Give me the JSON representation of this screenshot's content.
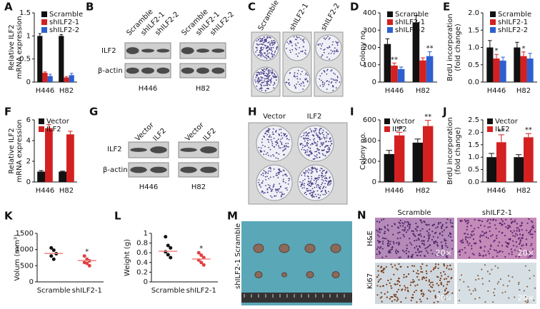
{
  "chart_data": [
    {
      "type": "bar",
      "panel": "A",
      "ylabel": [
        "Relative ILF2",
        "mRNA expression"
      ],
      "categories": [
        "H446",
        "H82"
      ],
      "series": [
        {
          "name": "Scramble",
          "color": "#111111",
          "values": [
            1.0,
            1.0
          ],
          "errors": [
            0.05,
            0.03
          ]
        },
        {
          "name": "shILF2-1",
          "color": "#d42020",
          "values": [
            0.2,
            0.1
          ],
          "errors": [
            0.02,
            0.02
          ]
        },
        {
          "name": "shILF2-2",
          "color": "#2e5fd0",
          "values": [
            0.13,
            0.15
          ],
          "errors": [
            0.04,
            0.04
          ]
        }
      ],
      "ylim": [
        0,
        1.5
      ],
      "yticks": [
        0,
        0.5,
        1,
        1.5
      ],
      "legend": "upper right"
    },
    {
      "type": "bar",
      "panel": "D",
      "ylabel": [
        "Colony no."
      ],
      "categories": [
        "H446",
        "H82"
      ],
      "series": [
        {
          "name": "Scramble",
          "color": "#111111",
          "values": [
            220,
            345
          ],
          "errors": [
            30,
            40
          ]
        },
        {
          "name": "shILF2-1",
          "color": "#d42020",
          "values": [
            95,
            125
          ],
          "errors": [
            15,
            15
          ]
        },
        {
          "name": "shILF2-2",
          "color": "#2e5fd0",
          "values": [
            75,
            150
          ],
          "errors": [
            12,
            25
          ]
        }
      ],
      "ylim": [
        0,
        400
      ],
      "yticks": [
        0,
        100,
        200,
        300,
        400
      ],
      "legend": "upper right",
      "significance": [
        {
          "series": 1,
          "category": 0,
          "text": "**"
        },
        {
          "series": 2,
          "category": 1,
          "text": "**"
        }
      ]
    },
    {
      "type": "bar",
      "panel": "E",
      "ylabel": [
        "BrdU incorporation",
        "(fold change)"
      ],
      "categories": [
        "H446",
        "H82"
      ],
      "series": [
        {
          "name": "Scramble",
          "color": "#111111",
          "values": [
            1.0,
            1.0
          ],
          "errors": [
            0.2,
            0.15
          ]
        },
        {
          "name": "shILF2-1",
          "color": "#d42020",
          "values": [
            0.68,
            0.75
          ],
          "errors": [
            0.12,
            0.12
          ]
        },
        {
          "name": "shILF2-2",
          "color": "#2e5fd0",
          "values": [
            0.62,
            0.68
          ],
          "errors": [
            0.1,
            0.15
          ]
        }
      ],
      "ylim": [
        0,
        2.0
      ],
      "yticks": [
        {
          "value": 0,
          "label": "0.0"
        },
        {
          "value": 0.5,
          "label": "0.5"
        },
        {
          "value": 1.0,
          "label": "1.0"
        },
        {
          "value": 1.5,
          "label": "1.5"
        },
        {
          "value": 2.0,
          "label": "2.0"
        }
      ],
      "legend": "upper right",
      "significance": [
        {
          "series": 1,
          "category": 0,
          "text": "*"
        },
        {
          "series": 1,
          "category": 1,
          "text": "*"
        }
      ]
    },
    {
      "type": "bar",
      "panel": "F",
      "ylabel": [
        "Relative ILF2",
        "mRNA expression"
      ],
      "categories": [
        "H446",
        "H82"
      ],
      "series": [
        {
          "name": "Vector",
          "color": "#111111",
          "values": [
            1.0,
            1.0
          ],
          "errors": [
            0.1,
            0.05
          ]
        },
        {
          "name": "ILF2",
          "color": "#d42020",
          "values": [
            5.2,
            4.6
          ],
          "errors": [
            0.35,
            0.3
          ]
        }
      ],
      "ylim": [
        0,
        6
      ],
      "yticks": [
        0,
        2,
        4,
        6
      ],
      "legend": "upper left"
    },
    {
      "type": "bar",
      "panel": "I",
      "ylabel": [
        "Colony no."
      ],
      "categories": [
        "H446",
        "H82"
      ],
      "series": [
        {
          "name": "Vector",
          "color": "#111111",
          "values": [
            270,
            380
          ],
          "errors": [
            35,
            35
          ]
        },
        {
          "name": "ILF2",
          "color": "#d42020",
          "values": [
            450,
            540
          ],
          "errors": [
            30,
            55
          ]
        }
      ],
      "ylim": [
        0,
        600
      ],
      "yticks": [
        0,
        200,
        400,
        600
      ],
      "legend": "upper left",
      "significance": [
        {
          "series": 1,
          "category": 0,
          "text": "**"
        },
        {
          "series": 1,
          "category": 1,
          "text": "**"
        }
      ]
    },
    {
      "type": "bar",
      "panel": "J",
      "ylabel": [
        "BrdU incorporation",
        "(fold change)"
      ],
      "categories": [
        "H446",
        "H82"
      ],
      "series": [
        {
          "name": "Vector",
          "color": "#111111",
          "values": [
            1.0,
            1.0
          ],
          "errors": [
            0.15,
            0.1
          ]
        },
        {
          "name": "ILF2",
          "color": "#d42020",
          "values": [
            1.6,
            1.8
          ],
          "errors": [
            0.3,
            0.15
          ]
        }
      ],
      "ylim": [
        0,
        2.5
      ],
      "yticks": [
        {
          "value": 0,
          "label": "0.0"
        },
        {
          "value": 0.5,
          "label": "0.5"
        },
        {
          "value": 1.0,
          "label": "1.0"
        },
        {
          "value": 1.5,
          "label": "1.5"
        },
        {
          "value": 2.0,
          "label": "2.0"
        },
        {
          "value": 2.5,
          "label": "2.5"
        }
      ],
      "legend": "upper left",
      "significance": [
        {
          "series": 1,
          "category": 0,
          "text": "**"
        },
        {
          "series": 1,
          "category": 1,
          "text": "**"
        }
      ]
    },
    {
      "type": "strip",
      "panel": "K",
      "ylabel": [
        "Volum (mm³)"
      ],
      "mean_color": "#f08080",
      "groups": [
        {
          "name": "Scramble",
          "color": "#111111",
          "values": [
            1050,
            980,
            870,
            800,
            700
          ],
          "mean": 880
        },
        {
          "name": "shILF2-1",
          "color": "#e04040",
          "values": [
            800,
            700,
            650,
            600,
            570,
            500
          ],
          "mean": 660
        }
      ],
      "ylim": [
        0,
        1500
      ],
      "yticks": [
        0,
        500,
        1000,
        1500
      ],
      "significance": [
        {
          "group": 1,
          "text": "*"
        }
      ]
    },
    {
      "type": "strip",
      "panel": "L",
      "ylabel": [
        "Weight (g)"
      ],
      "mean_color": "#f08080",
      "groups": [
        {
          "name": "Scramble",
          "color": "#111111",
          "values": [
            0.93,
            0.75,
            0.7,
            0.62,
            0.56,
            0.5
          ],
          "mean": 0.63
        },
        {
          "name": "shILF2-1",
          "color": "#e04040",
          "values": [
            0.6,
            0.55,
            0.5,
            0.45,
            0.4,
            0.35
          ],
          "mean": 0.47
        }
      ],
      "ylim": [
        0,
        1.0
      ],
      "yticks": [
        0,
        0.2,
        0.4,
        0.6,
        0.8,
        1
      ],
      "significance": [
        {
          "group": 1,
          "text": "*"
        }
      ]
    }
  ],
  "panels": {
    "B": {
      "label": "B",
      "columns": [
        "Scramble",
        "shILF2-1",
        "shILF2-2",
        "Scramble",
        "shILF2-1",
        "shILF2-2"
      ],
      "rows": [
        "ILF2",
        "β-actin"
      ],
      "cell_lines": [
        "H446",
        "H82"
      ]
    },
    "C": {
      "label": "C",
      "columns": [
        "Scramble",
        "shILF2-1",
        "shILF2-2"
      ]
    },
    "G": {
      "label": "G",
      "columns": [
        "Vector",
        "ILF2",
        "Vector",
        "ILF2"
      ],
      "rows": [
        "ILF2",
        "β-actin"
      ],
      "cell_lines": [
        "H446",
        "H82"
      ]
    },
    "H": {
      "label": "H",
      "columns": [
        "Vector",
        "ILF2"
      ]
    },
    "M": {
      "label": "M",
      "rows": [
        "Scramble",
        "shILF2-1"
      ]
    },
    "N": {
      "label": "N",
      "columns": [
        "Scramble",
        "shILF2-1"
      ],
      "rows": [
        "H&E",
        "Ki67"
      ],
      "magnification": "20×"
    }
  }
}
